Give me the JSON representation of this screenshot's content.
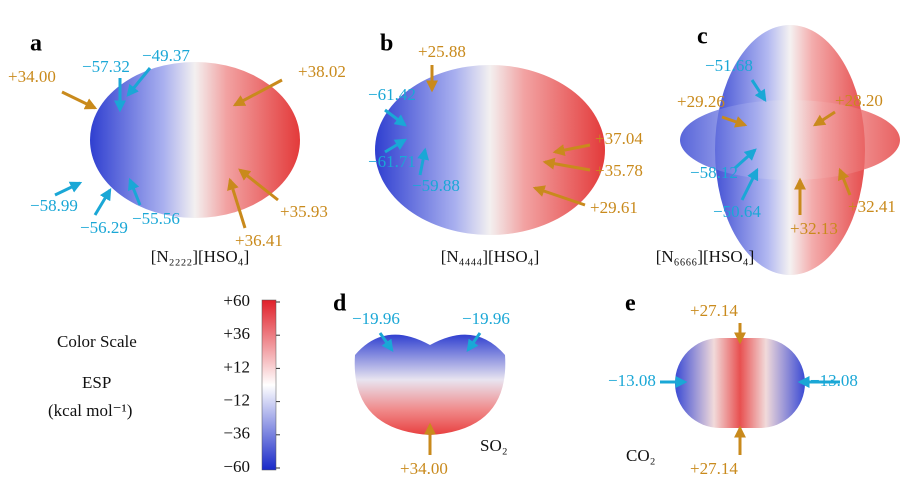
{
  "panels": [
    {
      "label": "a",
      "caption": "[N₂₂₂₂][HSO₄]",
      "annotations": [
        "+34.00",
        "−57.32",
        "−49.37",
        "+38.02",
        "+35.93",
        "+36.41",
        "−58.99",
        "−56.29",
        "−55.56"
      ]
    },
    {
      "label": "b",
      "caption": "[N₄₄₄₄][HSO₄]",
      "annotations": [
        "+25.88",
        "−61.42",
        "−61.71",
        "−59.88",
        "+37.04",
        "+35.78",
        "+29.61"
      ]
    },
    {
      "label": "c",
      "caption": "[N₆₆₆₆][HSO₄]",
      "annotations": [
        "−51.68",
        "+29.26",
        "+28.20",
        "−58.12",
        "−50.64",
        "+32.41",
        "+32.13"
      ]
    },
    {
      "label": "d",
      "caption": "SO₂",
      "annotations": [
        "−19.96",
        "−19.96",
        "+34.00"
      ]
    },
    {
      "label": "e",
      "caption": "CO₂",
      "annotations": [
        "+27.14",
        "−13.08",
        "−13.08",
        "+27.14"
      ]
    }
  ],
  "color_scale": {
    "title": "Color Scale",
    "quantity": "ESP",
    "unit": "(kcal mol⁻¹)",
    "ticks": [
      "+60",
      "+36",
      "+12",
      "−12",
      "−36",
      "−60"
    ]
  }
}
